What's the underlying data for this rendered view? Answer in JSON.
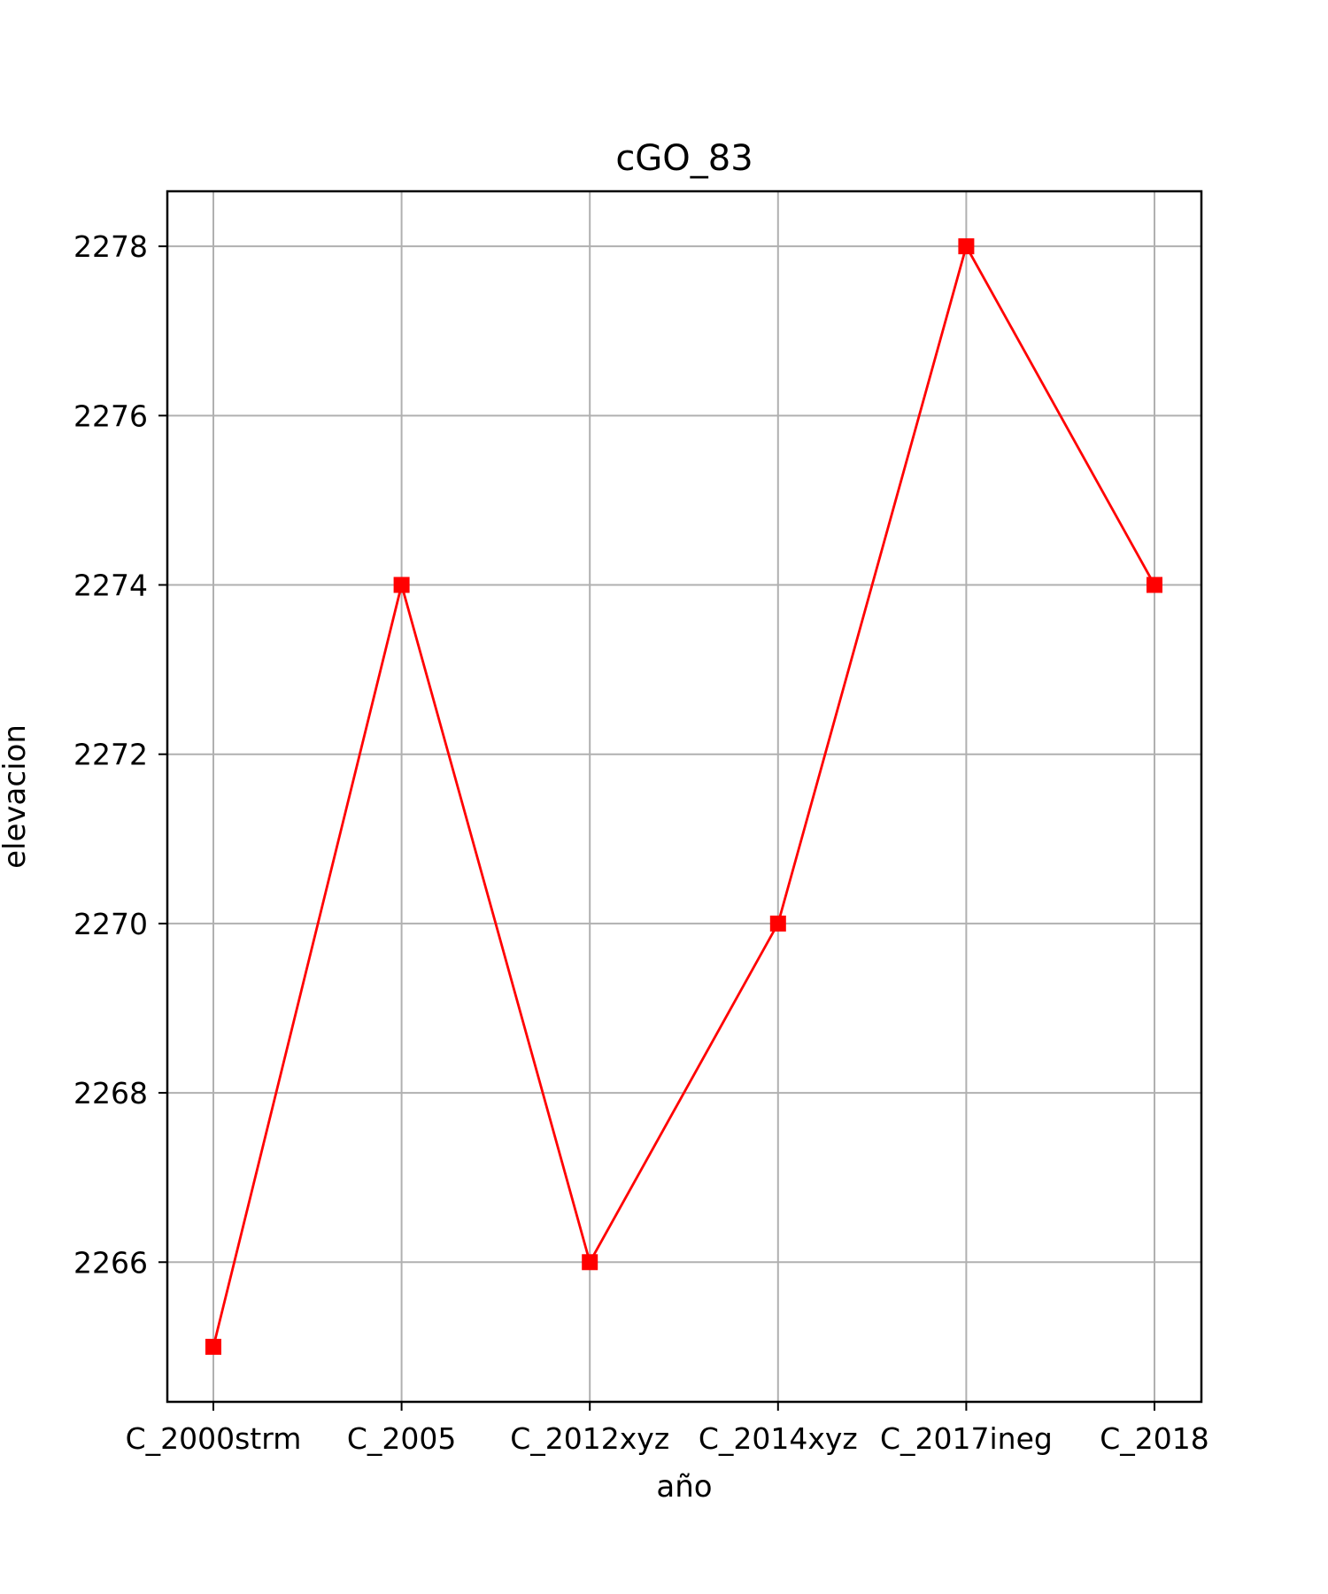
{
  "chart_data": {
    "type": "line",
    "title": "cGO_83",
    "xlabel": "año",
    "ylabel": "elevacion",
    "categories": [
      "C_2000strm",
      "C_2005",
      "C_2012xyz",
      "C_2014xyz",
      "C_2017ineg",
      "C_2018"
    ],
    "series": [
      {
        "values": [
          2265,
          2274,
          2266,
          2270,
          2278,
          2274
        ],
        "color": "#ff0000",
        "marker": "square"
      }
    ],
    "yticks": [
      2266,
      2268,
      2270,
      2272,
      2274,
      2276,
      2278
    ],
    "ylim": [
      2264.35,
      2278.65
    ],
    "grid": true,
    "colors": {
      "line": "#ff0000",
      "grid": "#b0b0b0",
      "frame": "#000000"
    }
  }
}
